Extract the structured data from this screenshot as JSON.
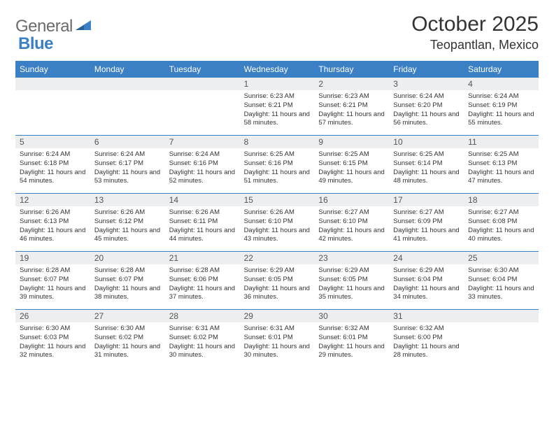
{
  "logo": {
    "prefix": "General",
    "suffix": "Blue"
  },
  "title": "October 2025",
  "location": "Teopantlan, Mexico",
  "colors": {
    "header_bg": "#3b7fc4",
    "header_text": "#ffffff",
    "daynum_bg": "#eceef0",
    "row_divider": "#3b7fc4",
    "body_text": "#333333",
    "logo_gray": "#6b6b6b"
  },
  "weekdays": [
    "Sunday",
    "Monday",
    "Tuesday",
    "Wednesday",
    "Thursday",
    "Friday",
    "Saturday"
  ],
  "weeks": [
    [
      {
        "num": "",
        "lines": []
      },
      {
        "num": "",
        "lines": []
      },
      {
        "num": "",
        "lines": []
      },
      {
        "num": "1",
        "lines": [
          "Sunrise: 6:23 AM",
          "Sunset: 6:21 PM",
          "Daylight: 11 hours and 58 minutes."
        ]
      },
      {
        "num": "2",
        "lines": [
          "Sunrise: 6:23 AM",
          "Sunset: 6:21 PM",
          "Daylight: 11 hours and 57 minutes."
        ]
      },
      {
        "num": "3",
        "lines": [
          "Sunrise: 6:24 AM",
          "Sunset: 6:20 PM",
          "Daylight: 11 hours and 56 minutes."
        ]
      },
      {
        "num": "4",
        "lines": [
          "Sunrise: 6:24 AM",
          "Sunset: 6:19 PM",
          "Daylight: 11 hours and 55 minutes."
        ]
      }
    ],
    [
      {
        "num": "5",
        "lines": [
          "Sunrise: 6:24 AM",
          "Sunset: 6:18 PM",
          "Daylight: 11 hours and 54 minutes."
        ]
      },
      {
        "num": "6",
        "lines": [
          "Sunrise: 6:24 AM",
          "Sunset: 6:17 PM",
          "Daylight: 11 hours and 53 minutes."
        ]
      },
      {
        "num": "7",
        "lines": [
          "Sunrise: 6:24 AM",
          "Sunset: 6:16 PM",
          "Daylight: 11 hours and 52 minutes."
        ]
      },
      {
        "num": "8",
        "lines": [
          "Sunrise: 6:25 AM",
          "Sunset: 6:16 PM",
          "Daylight: 11 hours and 51 minutes."
        ]
      },
      {
        "num": "9",
        "lines": [
          "Sunrise: 6:25 AM",
          "Sunset: 6:15 PM",
          "Daylight: 11 hours and 49 minutes."
        ]
      },
      {
        "num": "10",
        "lines": [
          "Sunrise: 6:25 AM",
          "Sunset: 6:14 PM",
          "Daylight: 11 hours and 48 minutes."
        ]
      },
      {
        "num": "11",
        "lines": [
          "Sunrise: 6:25 AM",
          "Sunset: 6:13 PM",
          "Daylight: 11 hours and 47 minutes."
        ]
      }
    ],
    [
      {
        "num": "12",
        "lines": [
          "Sunrise: 6:26 AM",
          "Sunset: 6:13 PM",
          "Daylight: 11 hours and 46 minutes."
        ]
      },
      {
        "num": "13",
        "lines": [
          "Sunrise: 6:26 AM",
          "Sunset: 6:12 PM",
          "Daylight: 11 hours and 45 minutes."
        ]
      },
      {
        "num": "14",
        "lines": [
          "Sunrise: 6:26 AM",
          "Sunset: 6:11 PM",
          "Daylight: 11 hours and 44 minutes."
        ]
      },
      {
        "num": "15",
        "lines": [
          "Sunrise: 6:26 AM",
          "Sunset: 6:10 PM",
          "Daylight: 11 hours and 43 minutes."
        ]
      },
      {
        "num": "16",
        "lines": [
          "Sunrise: 6:27 AM",
          "Sunset: 6:10 PM",
          "Daylight: 11 hours and 42 minutes."
        ]
      },
      {
        "num": "17",
        "lines": [
          "Sunrise: 6:27 AM",
          "Sunset: 6:09 PM",
          "Daylight: 11 hours and 41 minutes."
        ]
      },
      {
        "num": "18",
        "lines": [
          "Sunrise: 6:27 AM",
          "Sunset: 6:08 PM",
          "Daylight: 11 hours and 40 minutes."
        ]
      }
    ],
    [
      {
        "num": "19",
        "lines": [
          "Sunrise: 6:28 AM",
          "Sunset: 6:07 PM",
          "Daylight: 11 hours and 39 minutes."
        ]
      },
      {
        "num": "20",
        "lines": [
          "Sunrise: 6:28 AM",
          "Sunset: 6:07 PM",
          "Daylight: 11 hours and 38 minutes."
        ]
      },
      {
        "num": "21",
        "lines": [
          "Sunrise: 6:28 AM",
          "Sunset: 6:06 PM",
          "Daylight: 11 hours and 37 minutes."
        ]
      },
      {
        "num": "22",
        "lines": [
          "Sunrise: 6:29 AM",
          "Sunset: 6:05 PM",
          "Daylight: 11 hours and 36 minutes."
        ]
      },
      {
        "num": "23",
        "lines": [
          "Sunrise: 6:29 AM",
          "Sunset: 6:05 PM",
          "Daylight: 11 hours and 35 minutes."
        ]
      },
      {
        "num": "24",
        "lines": [
          "Sunrise: 6:29 AM",
          "Sunset: 6:04 PM",
          "Daylight: 11 hours and 34 minutes."
        ]
      },
      {
        "num": "25",
        "lines": [
          "Sunrise: 6:30 AM",
          "Sunset: 6:04 PM",
          "Daylight: 11 hours and 33 minutes."
        ]
      }
    ],
    [
      {
        "num": "26",
        "lines": [
          "Sunrise: 6:30 AM",
          "Sunset: 6:03 PM",
          "Daylight: 11 hours and 32 minutes."
        ]
      },
      {
        "num": "27",
        "lines": [
          "Sunrise: 6:30 AM",
          "Sunset: 6:02 PM",
          "Daylight: 11 hours and 31 minutes."
        ]
      },
      {
        "num": "28",
        "lines": [
          "Sunrise: 6:31 AM",
          "Sunset: 6:02 PM",
          "Daylight: 11 hours and 30 minutes."
        ]
      },
      {
        "num": "29",
        "lines": [
          "Sunrise: 6:31 AM",
          "Sunset: 6:01 PM",
          "Daylight: 11 hours and 30 minutes."
        ]
      },
      {
        "num": "30",
        "lines": [
          "Sunrise: 6:32 AM",
          "Sunset: 6:01 PM",
          "Daylight: 11 hours and 29 minutes."
        ]
      },
      {
        "num": "31",
        "lines": [
          "Sunrise: 6:32 AM",
          "Sunset: 6:00 PM",
          "Daylight: 11 hours and 28 minutes."
        ]
      },
      {
        "num": "",
        "lines": []
      }
    ]
  ]
}
